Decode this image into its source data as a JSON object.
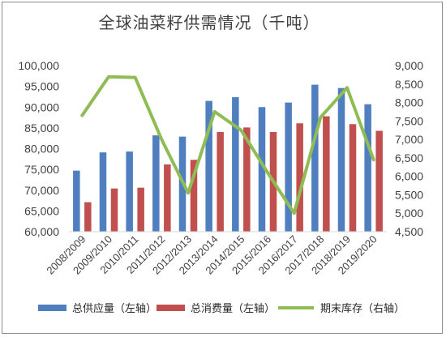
{
  "chart_data": {
    "type": "bar",
    "title": "全球油菜籽供需情况（千吨）",
    "categories": [
      "2008/2009",
      "2009/2010",
      "2010/2011",
      "2011/2012",
      "2012/2013",
      "2013/2014",
      "2014/2015",
      "2015/2016",
      "2016/2017",
      "2017/2018",
      "2018/2019",
      "2019/2020"
    ],
    "left_axis": {
      "ylim": [
        60000,
        100000
      ],
      "ticks": [
        "60,000",
        "65,000",
        "70,000",
        "75,000",
        "80,000",
        "85,000",
        "90,000",
        "95,000",
        "100,000"
      ]
    },
    "right_axis": {
      "ylim": [
        4500,
        9000
      ],
      "ticks": [
        "4,500",
        "5,000",
        "5,500",
        "6,000",
        "6,500",
        "7,000",
        "7,500",
        "8,000",
        "8,500",
        "9,000"
      ]
    },
    "series": [
      {
        "name": "总供应量（左轴）",
        "type": "bar",
        "axis": "left",
        "color": "#4f7fbf",
        "values": [
          74700,
          79100,
          79300,
          83200,
          82900,
          91500,
          92400,
          90000,
          91100,
          95400,
          94600,
          90700
        ]
      },
      {
        "name": "总消费量（左轴）",
        "type": "bar",
        "axis": "left",
        "color": "#c0504d",
        "values": [
          67100,
          70400,
          70600,
          76200,
          77300,
          84000,
          85100,
          84000,
          86100,
          87800,
          85900,
          84300
        ]
      },
      {
        "name": "期末库存（右轴）",
        "type": "line",
        "axis": "right",
        "color": "#8fbc55",
        "values": [
          7650,
          8700,
          8680,
          7000,
          5550,
          7750,
          7250,
          6100,
          5000,
          7600,
          8400,
          6450
        ]
      }
    ],
    "legend_position": "bottom",
    "grid": false
  }
}
